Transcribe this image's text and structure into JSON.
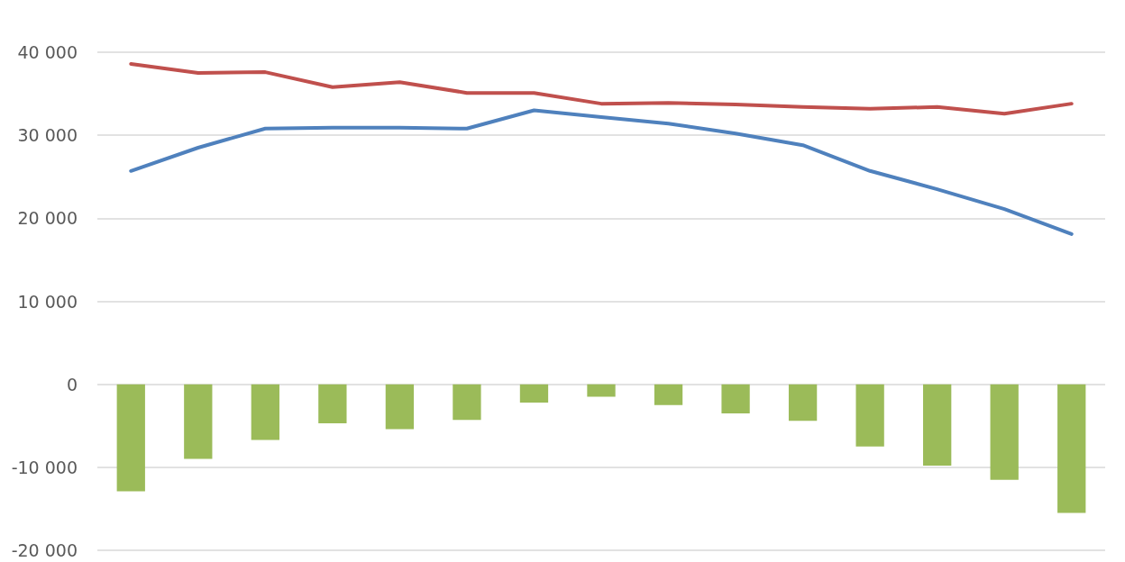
{
  "chart_data": {
    "type": "line",
    "categories": [
      null,
      null,
      null,
      null,
      null,
      null,
      null,
      null,
      null,
      null,
      null,
      null,
      null,
      null,
      null
    ],
    "series": [
      {
        "color": "#c0504d",
        "values": [
          38600,
          37500,
          37600,
          35800,
          36400,
          35100,
          35100,
          33800,
          33900,
          33700,
          33400,
          33200,
          33400,
          32600,
          33800
        ]
      },
      {
        "color": "#4f81bd",
        "values": [
          25700,
          28500,
          30800,
          30900,
          30900,
          30800,
          33000,
          32200,
          31400,
          30200,
          28800,
          25700,
          23500,
          21100,
          18100
        ]
      },
      {
        "type": "bar",
        "color": "#9bbb59",
        "values": [
          -12900,
          -9000,
          -6700,
          -4700,
          -5400,
          -4300,
          -2200,
          -1500,
          -2500,
          -3500,
          -4400,
          -7500,
          -9800,
          -11500,
          -15500
        ]
      }
    ],
    "ylim": [
      -20000,
      40000
    ],
    "yticks": [
      {
        "value": -20000,
        "label": "-20 000"
      },
      {
        "value": -10000,
        "label": "-10 000"
      },
      {
        "value": 0,
        "label": "0"
      },
      {
        "value": 10000,
        "label": "10 000"
      },
      {
        "value": 20000,
        "label": "20 000"
      },
      {
        "value": 30000,
        "label": "30 000"
      },
      {
        "value": 40000,
        "label": "40 000"
      }
    ],
    "grid": "y",
    "marker": "none",
    "line_style": "solid"
  }
}
